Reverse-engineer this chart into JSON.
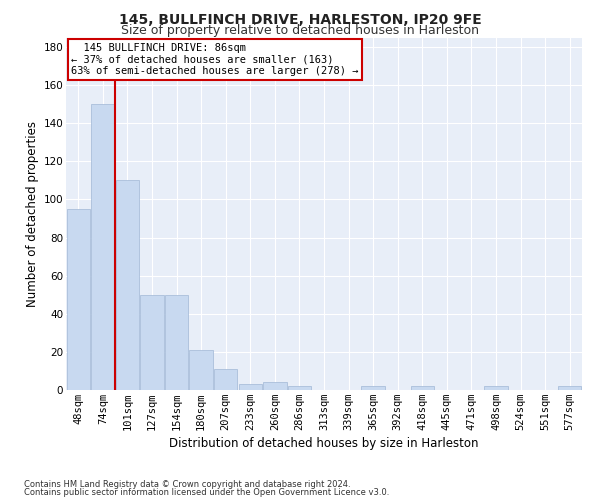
{
  "title": "145, BULLFINCH DRIVE, HARLESTON, IP20 9FE",
  "subtitle": "Size of property relative to detached houses in Harleston",
  "xlabel": "Distribution of detached houses by size in Harleston",
  "ylabel": "Number of detached properties",
  "bar_values": [
    95,
    150,
    110,
    50,
    50,
    21,
    11,
    3,
    4,
    2,
    0,
    0,
    2,
    0,
    2,
    0,
    0,
    2,
    0,
    0,
    2
  ],
  "bin_labels": [
    "48sqm",
    "74sqm",
    "101sqm",
    "127sqm",
    "154sqm",
    "180sqm",
    "207sqm",
    "233sqm",
    "260sqm",
    "286sqm",
    "313sqm",
    "339sqm",
    "365sqm",
    "392sqm",
    "418sqm",
    "445sqm",
    "471sqm",
    "498sqm",
    "524sqm",
    "551sqm",
    "577sqm"
  ],
  "bar_color": "#c8d9f0",
  "bar_edge_color": "#aabfdb",
  "background_color": "#e8eef8",
  "grid_color": "#ffffff",
  "annotation_text": "  145 BULLFINCH DRIVE: 86sqm\n← 37% of detached houses are smaller (163)\n63% of semi-detached houses are larger (278) →",
  "red_line_x": 1.5,
  "annotation_box_color": "#ffffff",
  "annotation_box_edge": "#cc0000",
  "red_line_color": "#cc0000",
  "ylim": [
    0,
    185
  ],
  "yticks": [
    0,
    20,
    40,
    60,
    80,
    100,
    120,
    140,
    160,
    180
  ],
  "footer_line1": "Contains HM Land Registry data © Crown copyright and database right 2024.",
  "footer_line2": "Contains public sector information licensed under the Open Government Licence v3.0.",
  "title_fontsize": 10,
  "subtitle_fontsize": 9,
  "xlabel_fontsize": 8.5,
  "ylabel_fontsize": 8.5,
  "tick_fontsize": 7.5,
  "annot_fontsize": 7.5
}
